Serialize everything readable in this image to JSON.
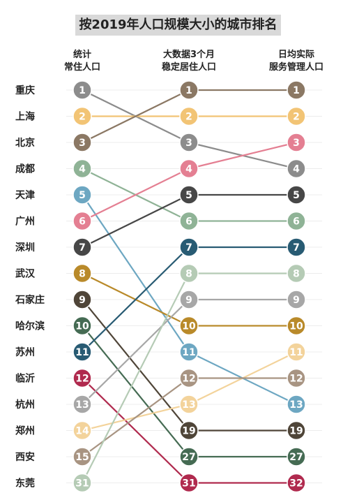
{
  "chart_data": {
    "type": "bump",
    "title": "按2019年人口规模大小的城市排名",
    "columns": [
      {
        "line1": "统计",
        "line2": "常住人口"
      },
      {
        "line1": "大数据3个月",
        "line2": "稳定居住人口"
      },
      {
        "line1": "日均实际",
        "line2": "服务管理人口"
      }
    ],
    "cities": [
      {
        "name": "重庆",
        "color": "#8c8c8c",
        "ranks": [
          1,
          3,
          4
        ]
      },
      {
        "name": "上海",
        "color": "#f2c475",
        "ranks": [
          2,
          2,
          2
        ]
      },
      {
        "name": "北京",
        "color": "#8b7864",
        "ranks": [
          3,
          1,
          1
        ]
      },
      {
        "name": "成都",
        "color": "#8fb396",
        "ranks": [
          4,
          6,
          6
        ]
      },
      {
        "name": "天津",
        "color": "#6da7c2",
        "ranks": [
          5,
          11,
          13
        ]
      },
      {
        "name": "广州",
        "color": "#e47f92",
        "ranks": [
          6,
          4,
          3
        ]
      },
      {
        "name": "深圳",
        "color": "#474747",
        "ranks": [
          7,
          5,
          5
        ]
      },
      {
        "name": "武汉",
        "color": "#b98a2a",
        "ranks": [
          8,
          10,
          10
        ]
      },
      {
        "name": "石家庄",
        "color": "#4f4538",
        "ranks": [
          9,
          19,
          19
        ]
      },
      {
        "name": "哈尔滨",
        "color": "#456b53",
        "ranks": [
          10,
          27,
          27
        ]
      },
      {
        "name": "苏州",
        "color": "#285b73",
        "ranks": [
          11,
          7,
          7
        ]
      },
      {
        "name": "临沂",
        "color": "#b02a4e",
        "ranks": [
          12,
          31,
          32
        ]
      },
      {
        "name": "杭州",
        "color": "#a7a7a7",
        "ranks": [
          13,
          9,
          9
        ]
      },
      {
        "name": "郑州",
        "color": "#f3d39b",
        "ranks": [
          14,
          13,
          11
        ]
      },
      {
        "name": "西安",
        "color": "#a89482",
        "ranks": [
          15,
          12,
          12
        ]
      },
      {
        "name": "东莞",
        "color": "#b5cbb5",
        "ranks": [
          31,
          8,
          8
        ]
      }
    ]
  }
}
